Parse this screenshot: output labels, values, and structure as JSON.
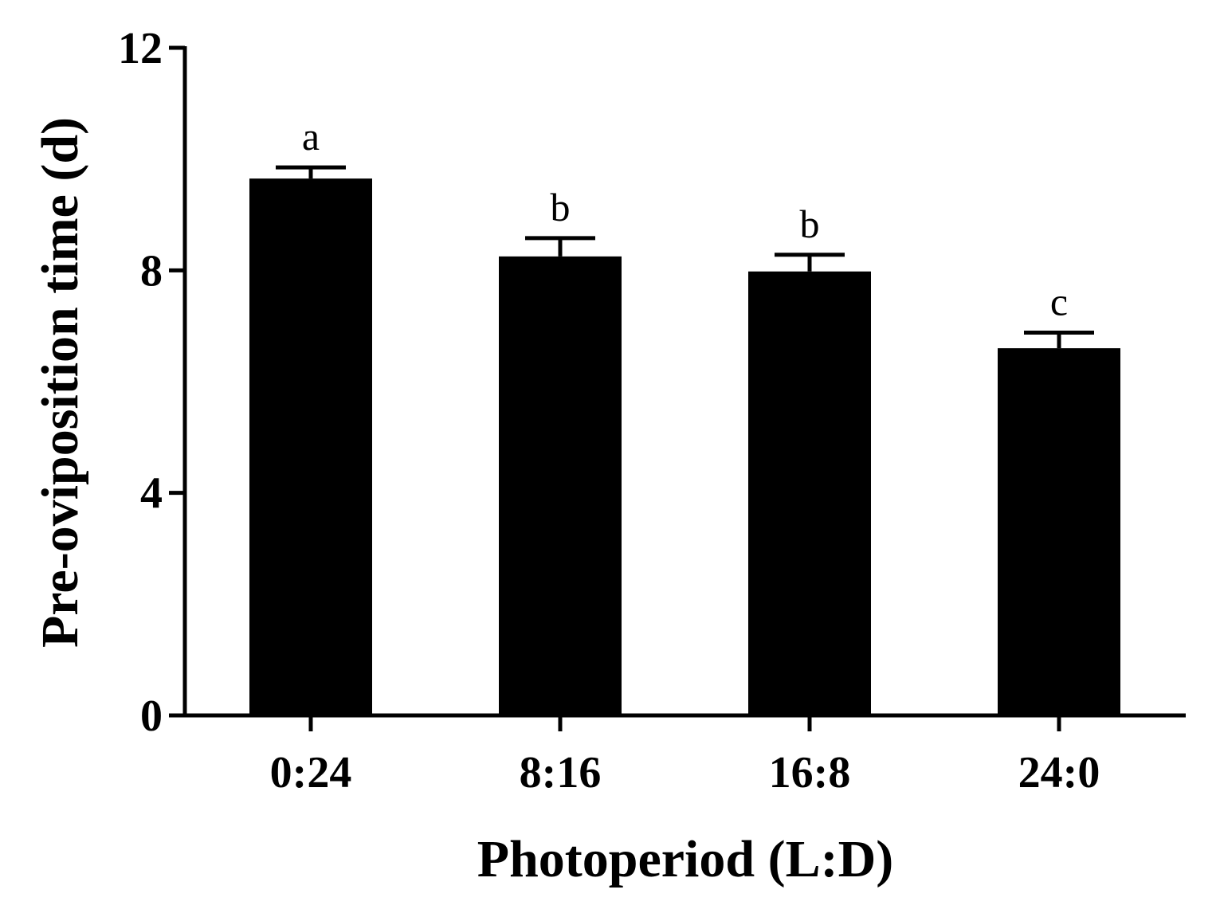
{
  "chart_data": {
    "type": "bar",
    "categories": [
      "0:24",
      "8:16",
      "16:8",
      "24:0"
    ],
    "values": [
      9.65,
      8.25,
      7.98,
      6.6
    ],
    "errors": [
      0.2,
      0.33,
      0.3,
      0.28
    ],
    "significance": [
      "a",
      "b",
      "b",
      "c"
    ],
    "xlabel": "Photoperiod (L:D)",
    "ylabel": "Pre-oviposition time (d)",
    "ylim": [
      0,
      12
    ],
    "yticks": [
      0,
      4,
      8,
      12
    ],
    "grid": false,
    "bar_color": "#000000"
  }
}
